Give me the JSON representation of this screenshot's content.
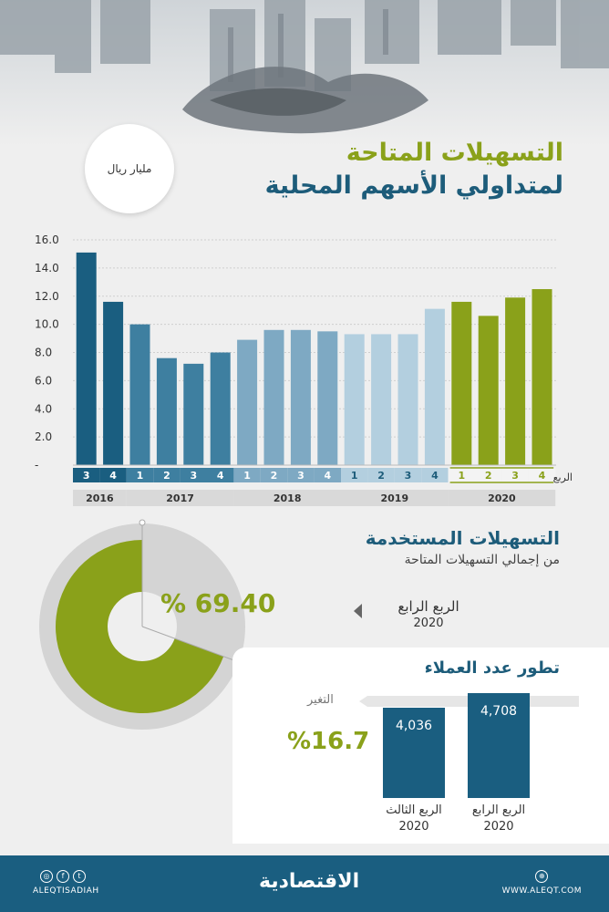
{
  "title": {
    "line1": "التسهيلات المتاحة",
    "line2": "لمتداولي الأسهم المحلية"
  },
  "unit": "مليار ريال",
  "chart_data": {
    "type": "bar",
    "title": "التسهيلات المتاحة لمتداولي الأسهم المحلية",
    "ylabel": "مليار ريال",
    "ylim": [
      0,
      16
    ],
    "yticks": [
      "-",
      "2.0",
      "4.0",
      "6.0",
      "8.0",
      "10.0",
      "12.0",
      "14.0",
      "16.0"
    ],
    "quarter_axis_label": "الربع",
    "groups": [
      {
        "year": "2016",
        "quarters": [
          "3",
          "4"
        ],
        "values": [
          15.1,
          11.6
        ],
        "color": "#1a5e80"
      },
      {
        "year": "2017",
        "quarters": [
          "1",
          "2",
          "3",
          "4"
        ],
        "values": [
          10.0,
          7.6,
          7.2,
          8.0
        ],
        "color": "#3e7fa0"
      },
      {
        "year": "2018",
        "quarters": [
          "1",
          "2",
          "3",
          "4"
        ],
        "values": [
          8.9,
          9.6,
          9.6,
          9.5
        ],
        "color": "#7ea9c3"
      },
      {
        "year": "2019",
        "quarters": [
          "1",
          "2",
          "3",
          "4"
        ],
        "values": [
          9.3,
          9.3,
          9.3,
          11.1
        ],
        "color": "#b3cfdf"
      },
      {
        "year": "2020",
        "quarters": [
          "1",
          "2",
          "3",
          "4"
        ],
        "values": [
          11.6,
          10.6,
          11.9,
          12.5
        ],
        "color": "#8aa11a"
      }
    ]
  },
  "used": {
    "heading": "التسهيلات المستخدمة",
    "subheading": "من إجمالي التسهيلات المتاحة",
    "percent": "% 69.40",
    "percent_value": 69.4,
    "period_line1": "الربع الرابع",
    "period_line2": "2020"
  },
  "clients": {
    "heading": "تطور عدد العملاء",
    "change_label": "التغير",
    "change_value": "%16.7",
    "bars": [
      {
        "value": 4708,
        "display": "4,708",
        "label1": "الربع الرابع",
        "label2": "2020"
      },
      {
        "value": 4036,
        "display": "4,036",
        "label1": "الربع الثالث",
        "label2": "2020"
      }
    ]
  },
  "footer": {
    "brand": "الاقتصادية",
    "social_handle": "ALEQTISADIAH",
    "website": "WWW.ALEQT.COM"
  },
  "colors": {
    "accent_green": "#8aa11a",
    "accent_blue": "#1d5c7a",
    "footer_blue": "#1a5e80"
  }
}
